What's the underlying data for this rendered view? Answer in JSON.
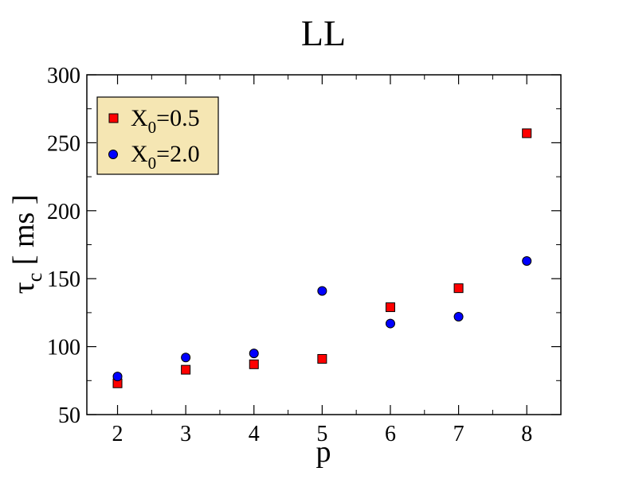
{
  "chart_data": {
    "type": "scatter",
    "title": "LL",
    "xlabel": "p",
    "ylabel_main": "τ",
    "ylabel_sub": "c",
    "ylabel_rest": " [ ms ]",
    "xlim": [
      1.55,
      8.5
    ],
    "ylim": [
      50,
      300
    ],
    "xticks": [
      2,
      3,
      4,
      5,
      6,
      7,
      8
    ],
    "xtick_labels": [
      "2",
      "3",
      "4",
      "5",
      "6",
      "7",
      "8"
    ],
    "yticks": [
      50,
      100,
      150,
      200,
      250,
      300
    ],
    "ytick_labels": [
      "50",
      "100",
      "150",
      "200",
      "250",
      "300"
    ],
    "grid": false,
    "legend_position": "top-left",
    "legend_background": "#f5e6b3",
    "series": [
      {
        "name_main": "X",
        "name_sub": "0",
        "name_rest": "=0.5",
        "marker": "square",
        "color": "#ff0000",
        "x": [
          2,
          3,
          4,
          5,
          6,
          7,
          8
        ],
        "y": [
          73,
          83,
          87,
          91,
          129,
          143,
          257
        ]
      },
      {
        "name_main": "X",
        "name_sub": "0",
        "name_rest": "=2.0",
        "marker": "circle",
        "color": "#0000ff",
        "x": [
          2,
          3,
          4,
          5,
          6,
          7,
          8
        ],
        "y": [
          78,
          92,
          95,
          141,
          117,
          122,
          163
        ]
      }
    ]
  }
}
